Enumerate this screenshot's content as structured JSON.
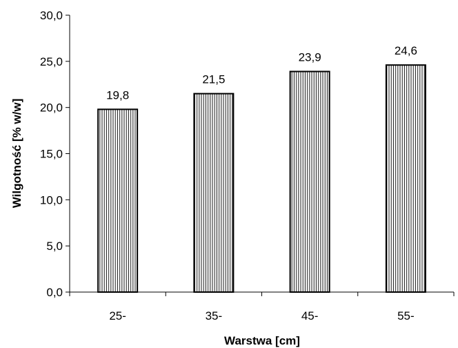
{
  "chart_data": {
    "type": "bar",
    "categories": [
      "25-",
      "35-",
      "45-",
      "55-"
    ],
    "values": [
      19.8,
      21.5,
      23.9,
      24.6
    ],
    "value_labels": [
      "19,8",
      "21,5",
      "23,9",
      "24,6"
    ],
    "xlabel": "Warstwa [cm]",
    "ylabel": "Wilgotność [% w/w]",
    "ylim": [
      0,
      30
    ],
    "yticks": [
      0,
      5,
      10,
      15,
      20,
      25,
      30
    ],
    "ytick_labels": [
      "0,0",
      "5,0",
      "10,0",
      "15,0",
      "20,0",
      "25,0",
      "30,0"
    ],
    "grid": false,
    "bar_fill": "vertical-hatch",
    "colors": {
      "bar_stroke": "#000000",
      "hatch": "#000000",
      "background": "#ffffff"
    }
  }
}
